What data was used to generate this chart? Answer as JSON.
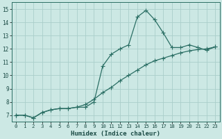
{
  "xlabel": "Humidex (Indice chaleur)",
  "background_color": "#cce8e4",
  "grid_color": "#aaceca",
  "line_color": "#2a6e64",
  "xlim": [
    -0.5,
    23.5
  ],
  "ylim": [
    6.5,
    15.5
  ],
  "xticks": [
    0,
    1,
    2,
    3,
    4,
    5,
    6,
    7,
    8,
    9,
    10,
    11,
    12,
    13,
    14,
    15,
    16,
    17,
    18,
    19,
    20,
    21,
    22,
    23
  ],
  "yticks": [
    7,
    8,
    9,
    10,
    11,
    12,
    13,
    14,
    15
  ],
  "line1_x": [
    0,
    1,
    2,
    3,
    4,
    5,
    6,
    7,
    8,
    9,
    10,
    11,
    12,
    13,
    14,
    15,
    16,
    17,
    18,
    19,
    20,
    21,
    22,
    23
  ],
  "line1_y": [
    7.0,
    7.0,
    6.8,
    7.2,
    7.4,
    7.5,
    7.5,
    7.6,
    7.6,
    8.0,
    10.7,
    11.6,
    12.0,
    12.3,
    14.4,
    14.9,
    14.2,
    13.2,
    12.1,
    12.1,
    12.3,
    12.1,
    11.9,
    12.15
  ],
  "line2_x": [
    0,
    1,
    2,
    3,
    4,
    5,
    6,
    7,
    8,
    9,
    10,
    11,
    12,
    13,
    14,
    15,
    16,
    17,
    18,
    19,
    20,
    21,
    22,
    23
  ],
  "line2_y": [
    7.0,
    7.0,
    6.8,
    7.2,
    7.4,
    7.5,
    7.5,
    7.6,
    7.8,
    8.2,
    8.7,
    9.1,
    9.6,
    10.0,
    10.4,
    10.8,
    11.1,
    11.3,
    11.5,
    11.7,
    11.85,
    11.95,
    12.0,
    12.15
  ]
}
